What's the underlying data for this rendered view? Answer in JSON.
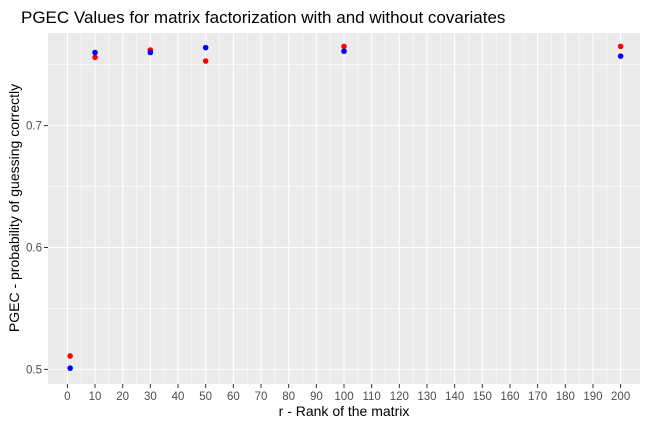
{
  "chart_data": {
    "type": "scatter",
    "title": "PGEC Values for matrix factorization with and without covariates",
    "xlabel": "r - Rank of the matrix",
    "ylabel": "PGEC - probability of guessing correctly",
    "xlim": [
      -7,
      207
    ],
    "ylim": [
      0.488,
      0.776
    ],
    "x_ticks": [
      0,
      10,
      20,
      30,
      40,
      50,
      60,
      70,
      80,
      90,
      100,
      110,
      120,
      130,
      140,
      150,
      160,
      170,
      180,
      190,
      200
    ],
    "y_ticks": [
      0.5,
      0.6,
      0.7
    ],
    "y_tick_labels": [
      "0.5",
      "0.6",
      "0.7"
    ],
    "grid": true,
    "panel_background": "#ebebeb",
    "grid_color": "#ffffff",
    "series": [
      {
        "color": "#ff0000",
        "x": [
          1,
          10,
          30,
          50,
          100,
          200
        ],
        "y": [
          0.511,
          0.756,
          0.762,
          0.753,
          0.765,
          0.765
        ]
      },
      {
        "color": "#0000ff",
        "x": [
          1,
          10,
          30,
          50,
          100,
          200
        ],
        "y": [
          0.501,
          0.76,
          0.76,
          0.764,
          0.761,
          0.757
        ]
      }
    ]
  }
}
